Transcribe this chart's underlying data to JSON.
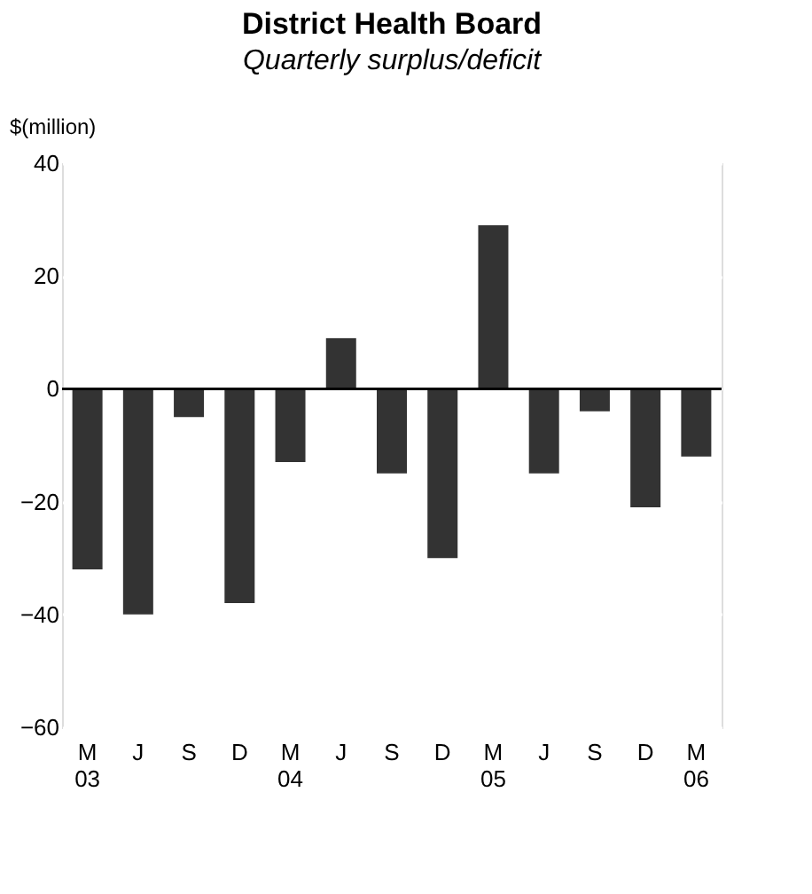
{
  "chart_data": {
    "type": "bar",
    "title": "District Health Board",
    "subtitle": "Quarterly surplus/deficit",
    "ylabel": "$(million)",
    "categories": [
      "M\n03",
      "J",
      "S",
      "D",
      "M\n04",
      "J",
      "S",
      "D",
      "M\n05",
      "J",
      "S",
      "D",
      "M\n06"
    ],
    "values": [
      -32,
      -40,
      -5,
      -38,
      -13,
      9,
      -15,
      -30,
      29,
      -15,
      -4,
      -21,
      -12
    ],
    "color": "#333333",
    "ylim": [
      -60,
      40
    ],
    "yticks": [
      -60,
      -40,
      -20,
      0,
      20,
      40
    ],
    "grid": "y",
    "ref_lines": [
      {
        "axis": "y",
        "value": 0,
        "color": "#000000"
      }
    ]
  }
}
